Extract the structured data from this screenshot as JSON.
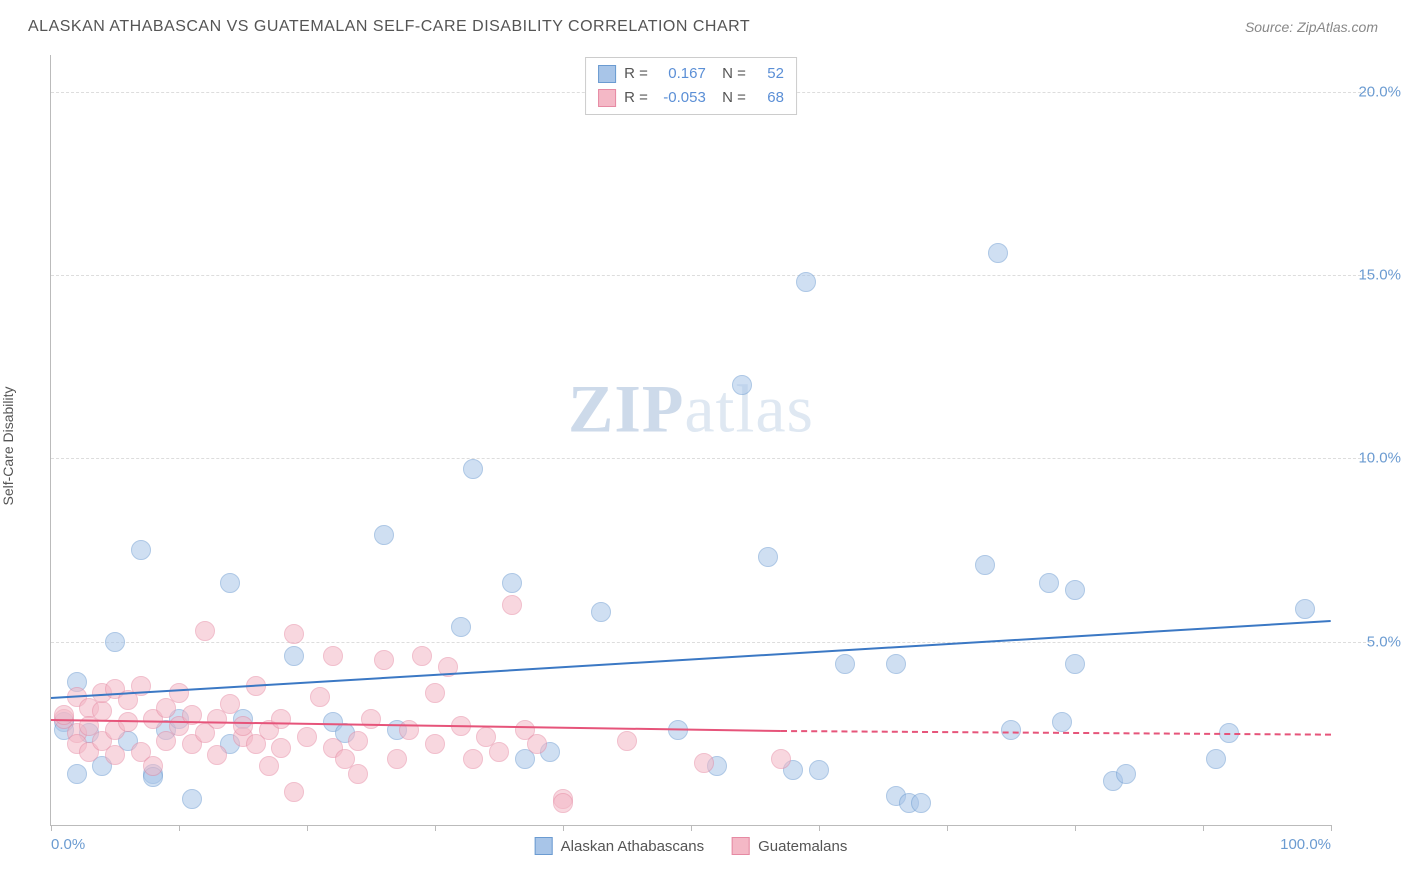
{
  "title": "ALASKAN ATHABASCAN VS GUATEMALAN SELF-CARE DISABILITY CORRELATION CHART",
  "source_label": "Source: ZipAtlas.com",
  "yaxis_label": "Self-Care Disability",
  "watermark_bold": "ZIP",
  "watermark_rest": "atlas",
  "chart": {
    "type": "scatter",
    "xlim": [
      0,
      100
    ],
    "ylim": [
      0,
      21
    ],
    "xticks": [
      0,
      10,
      20,
      30,
      40,
      50,
      60,
      70,
      80,
      90,
      100
    ],
    "xtick_labels": {
      "0": "0.0%",
      "100": "100.0%"
    },
    "yticks": [
      5,
      10,
      15,
      20
    ],
    "ytick_labels": [
      "5.0%",
      "10.0%",
      "15.0%",
      "20.0%"
    ],
    "grid_color": "#dddddd",
    "axis_color": "#bbbbbb",
    "tick_label_color": "#6b9bd1",
    "background_color": "#ffffff",
    "point_radius": 9
  },
  "series": [
    {
      "name": "Alaskan Athabascans",
      "fill_color": "#a8c5e8",
      "stroke_color": "#6b9bd1",
      "fill_opacity": 0.55,
      "trend_color": "#3b78c4",
      "trend": {
        "x1": 0,
        "y1": 3.5,
        "x2": 100,
        "y2": 5.6
      },
      "R": "0.167",
      "N": "52",
      "points": [
        [
          1,
          2.8
        ],
        [
          1,
          2.6
        ],
        [
          2,
          3.9
        ],
        [
          2,
          1.4
        ],
        [
          3,
          2.5
        ],
        [
          4,
          1.6
        ],
        [
          5,
          5.0
        ],
        [
          6,
          2.3
        ],
        [
          7,
          7.5
        ],
        [
          8,
          1.4
        ],
        [
          8,
          1.3
        ],
        [
          9,
          2.6
        ],
        [
          10,
          2.9
        ],
        [
          11,
          0.7
        ],
        [
          14,
          6.6
        ],
        [
          14,
          2.2
        ],
        [
          15,
          2.9
        ],
        [
          19,
          4.6
        ],
        [
          22,
          2.8
        ],
        [
          23,
          2.5
        ],
        [
          26,
          7.9
        ],
        [
          27,
          2.6
        ],
        [
          32,
          5.4
        ],
        [
          33,
          9.7
        ],
        [
          36,
          6.6
        ],
        [
          37,
          1.8
        ],
        [
          39,
          2.0
        ],
        [
          43,
          5.8
        ],
        [
          49,
          2.6
        ],
        [
          52,
          1.6
        ],
        [
          54,
          12.0
        ],
        [
          56,
          7.3
        ],
        [
          58,
          1.5
        ],
        [
          59,
          14.8
        ],
        [
          60,
          1.5
        ],
        [
          62,
          4.4
        ],
        [
          66,
          4.4
        ],
        [
          66,
          0.8
        ],
        [
          67,
          0.6
        ],
        [
          68,
          0.6
        ],
        [
          73,
          7.1
        ],
        [
          74,
          15.6
        ],
        [
          75,
          2.6
        ],
        [
          78,
          6.6
        ],
        [
          79,
          2.8
        ],
        [
          80,
          4.4
        ],
        [
          80,
          6.4
        ],
        [
          83,
          1.2
        ],
        [
          84,
          1.4
        ],
        [
          91,
          1.8
        ],
        [
          92,
          2.5
        ],
        [
          98,
          5.9
        ]
      ]
    },
    {
      "name": "Guatemalans",
      "fill_color": "#f4b8c6",
      "stroke_color": "#e68aa3",
      "fill_opacity": 0.55,
      "trend_color": "#e6547a",
      "trend": {
        "x1": 0,
        "y1": 2.9,
        "x2": 57,
        "y2": 2.6
      },
      "trend_dash": {
        "x1": 57,
        "y1": 2.6,
        "x2": 100,
        "y2": 2.5
      },
      "R": "-0.053",
      "N": "68",
      "points": [
        [
          1,
          2.9
        ],
        [
          1,
          3.0
        ],
        [
          2,
          2.5
        ],
        [
          2,
          2.2
        ],
        [
          2,
          3.5
        ],
        [
          3,
          2.0
        ],
        [
          3,
          3.2
        ],
        [
          3,
          2.7
        ],
        [
          4,
          2.3
        ],
        [
          4,
          3.1
        ],
        [
          4,
          3.6
        ],
        [
          5,
          1.9
        ],
        [
          5,
          3.7
        ],
        [
          5,
          2.6
        ],
        [
          6,
          2.8
        ],
        [
          6,
          3.4
        ],
        [
          7,
          2.0
        ],
        [
          7,
          3.8
        ],
        [
          8,
          1.6
        ],
        [
          8,
          2.9
        ],
        [
          9,
          3.2
        ],
        [
          9,
          2.3
        ],
        [
          10,
          2.7
        ],
        [
          10,
          3.6
        ],
        [
          11,
          2.2
        ],
        [
          11,
          3.0
        ],
        [
          12,
          2.5
        ],
        [
          12,
          5.3
        ],
        [
          13,
          2.9
        ],
        [
          13,
          1.9
        ],
        [
          14,
          3.3
        ],
        [
          15,
          2.4
        ],
        [
          15,
          2.7
        ],
        [
          16,
          2.2
        ],
        [
          16,
          3.8
        ],
        [
          17,
          2.6
        ],
        [
          17,
          1.6
        ],
        [
          18,
          2.9
        ],
        [
          18,
          2.1
        ],
        [
          19,
          5.2
        ],
        [
          19,
          0.9
        ],
        [
          20,
          2.4
        ],
        [
          21,
          3.5
        ],
        [
          22,
          2.1
        ],
        [
          22,
          4.6
        ],
        [
          23,
          1.8
        ],
        [
          24,
          2.3
        ],
        [
          24,
          1.4
        ],
        [
          25,
          2.9
        ],
        [
          26,
          4.5
        ],
        [
          27,
          1.8
        ],
        [
          28,
          2.6
        ],
        [
          29,
          4.6
        ],
        [
          30,
          2.2
        ],
        [
          30,
          3.6
        ],
        [
          31,
          4.3
        ],
        [
          32,
          2.7
        ],
        [
          33,
          1.8
        ],
        [
          34,
          2.4
        ],
        [
          35,
          2.0
        ],
        [
          36,
          6.0
        ],
        [
          37,
          2.6
        ],
        [
          38,
          2.2
        ],
        [
          40,
          0.7
        ],
        [
          40,
          0.6
        ],
        [
          45,
          2.3
        ],
        [
          51,
          1.7
        ],
        [
          57,
          1.8
        ]
      ]
    }
  ],
  "stats_box": {
    "r_label": "R =",
    "n_label": "N ="
  },
  "legend": {
    "items": [
      "Alaskan Athabascans",
      "Guatemalans"
    ]
  }
}
